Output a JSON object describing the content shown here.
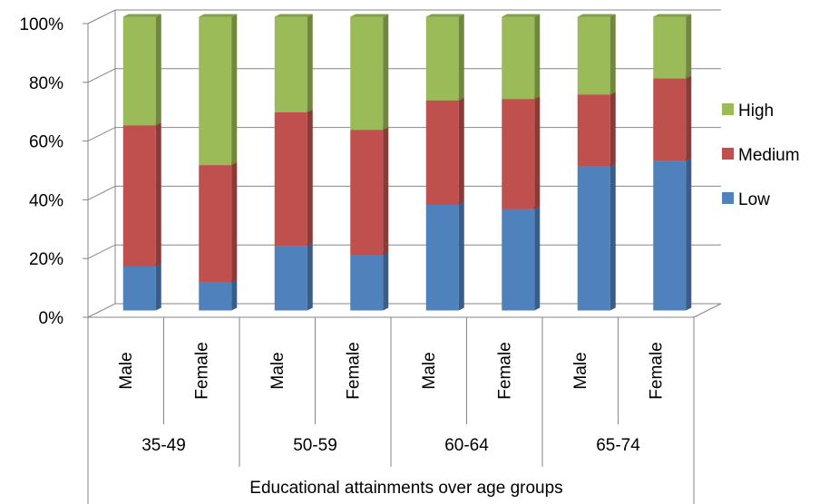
{
  "chart_data": {
    "type": "bar",
    "stacked": true,
    "percent_stacked": true,
    "three_d": true,
    "categories": [
      "Male",
      "Female",
      "Male",
      "Female",
      "Male",
      "Female",
      "Male",
      "Female"
    ],
    "groups": [
      {
        "label": "35-49",
        "span": 2
      },
      {
        "label": "50-59",
        "span": 2
      },
      {
        "label": "60-64",
        "span": 2
      },
      {
        "label": "65-74",
        "span": 2
      }
    ],
    "series": [
      {
        "name": "Low",
        "color": "#4F81BD",
        "values": [
          15,
          9.5,
          22,
          19,
          36,
          34.5,
          49,
          51
        ]
      },
      {
        "name": "Medium",
        "color": "#C0504D",
        "values": [
          48,
          40,
          45.5,
          42.5,
          35.5,
          37.5,
          24.5,
          28
        ]
      },
      {
        "name": "High",
        "color": "#9BBB59",
        "values": [
          37,
          50.5,
          32.5,
          38.5,
          28.5,
          28,
          26.5,
          21
        ]
      }
    ],
    "xlabel": "Educational attainments over age groups",
    "ylabel": "",
    "ylim": [
      0,
      100
    ],
    "ytick_labels": [
      "0%",
      "20%",
      "40%",
      "60%",
      "80%",
      "100%"
    ],
    "grid": true,
    "legend": "right"
  }
}
